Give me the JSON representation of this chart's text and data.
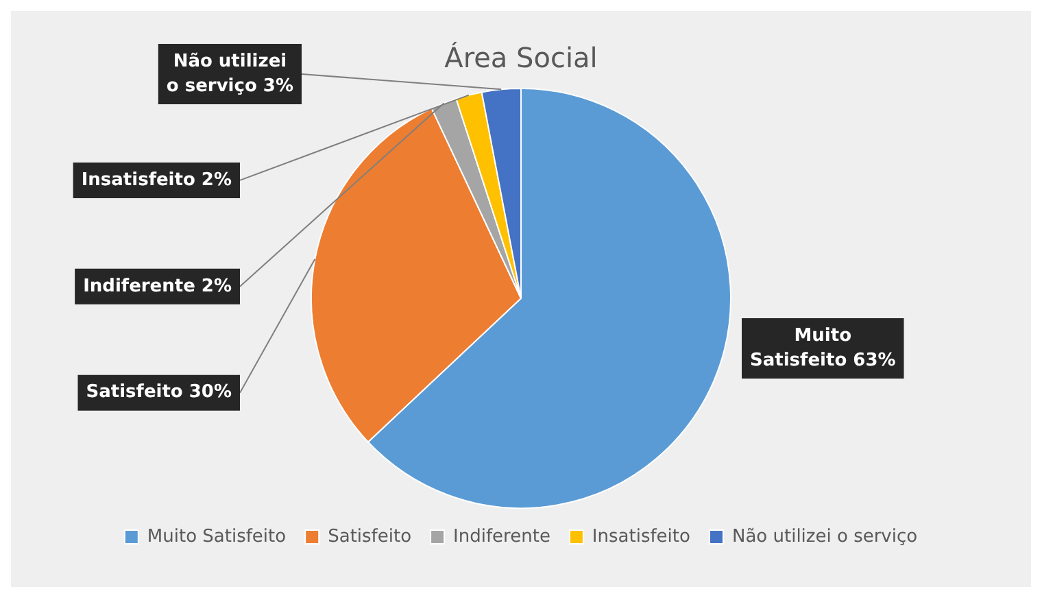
{
  "chart_data": {
    "type": "pie",
    "title": "Área Social",
    "categories": [
      "Muito Satisfeito",
      "Satisfeito",
      "Indiferente",
      "Insatisfeito",
      "Não utilizei o serviço"
    ],
    "values": [
      63,
      30,
      2,
      2,
      3
    ],
    "colors": [
      "#5b9bd5",
      "#ed7d31",
      "#a5a5a5",
      "#ffc000",
      "#4472c4"
    ],
    "value_labels": [
      "Muito Satisfeito 63%",
      "Satisfeito 30%",
      "Indiferente 2%",
      "Insatisfeito 2%",
      "Não utilizei o serviço 3%"
    ],
    "legend": "bottom"
  }
}
